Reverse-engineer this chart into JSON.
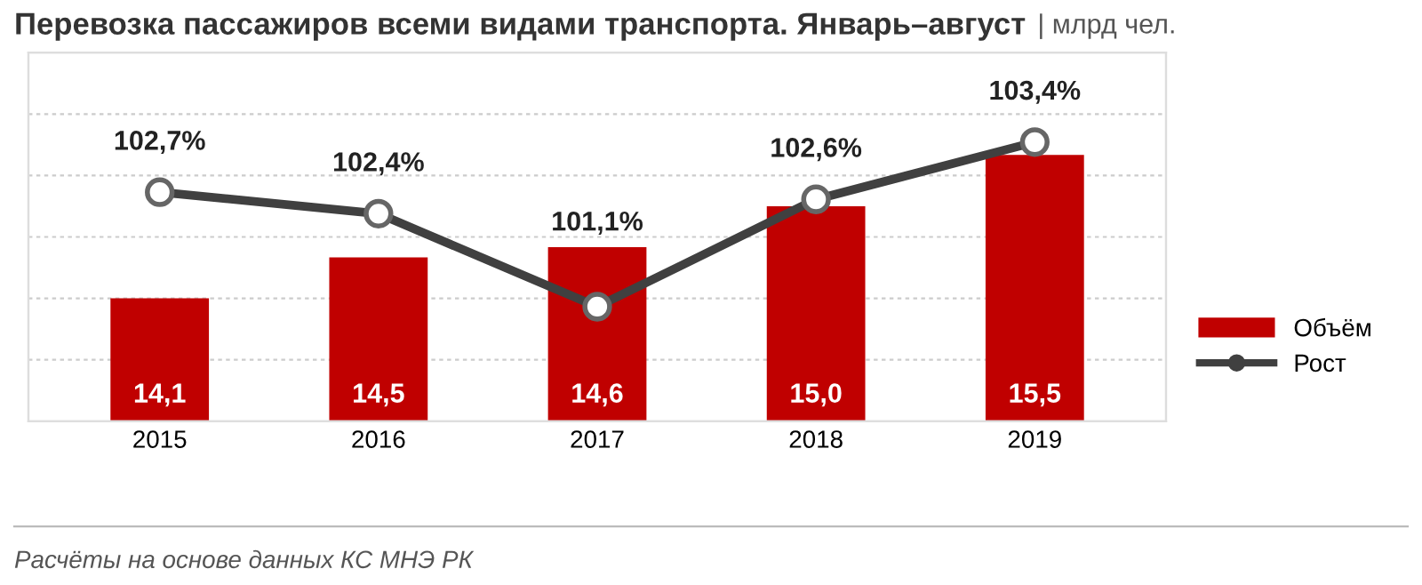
{
  "chart_data": {
    "type": "bar",
    "title": "Перевозка пассажиров всеми видами транспорта. Январь–август",
    "subtitle": "| млрд чел.",
    "categories": [
      "2015",
      "2016",
      "2017",
      "2018",
      "2019"
    ],
    "series": [
      {
        "name": "Объём",
        "color": "#c00000",
        "values": [
          14.1,
          14.5,
          14.6,
          15.0,
          15.5
        ],
        "value_labels": [
          "14,1",
          "14,5",
          "14,6",
          "15,0",
          "15,5"
        ]
      },
      {
        "name": "Рост",
        "type": "line",
        "axis": "y2",
        "color": "#404040",
        "values": [
          102.7,
          102.4,
          101.1,
          102.6,
          103.4
        ],
        "value_labels": [
          "102,7%",
          "102,4%",
          "101,1%",
          "102,6%",
          "103,4%"
        ]
      }
    ],
    "ylim": [
      12.9,
      16.5
    ],
    "yticks": [
      {
        "value": 13.5,
        "label": null
      },
      {
        "value": 14.1,
        "label": null
      },
      {
        "value": 14.7,
        "label": null
      },
      {
        "value": 15.3,
        "label": null
      },
      {
        "value": 15.9,
        "label": null
      }
    ],
    "y2lim": [
      99.5,
      104.65
    ],
    "grid": "y",
    "legend": "right",
    "marker": "circle",
    "line_style": "solid",
    "tick_labels": "x",
    "annotations": [
      "Расчёты на основе данных КС МНЭ РК"
    ]
  }
}
